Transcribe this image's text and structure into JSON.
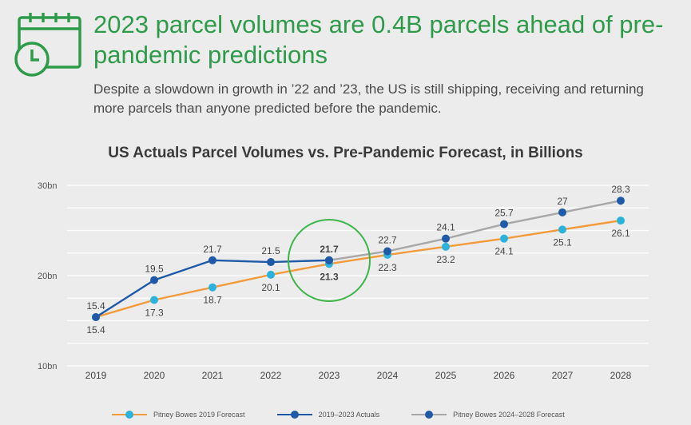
{
  "header": {
    "icon": "calendar-clock-icon",
    "headline": "2023 parcel volumes are 0.4B parcels ahead of pre-pandemic predictions",
    "subtitle": "Despite a slowdown in growth in ’22 and ’23, the US is still shipping, receiving and returning more parcels than anyone predicted before the pandemic."
  },
  "chart_data": {
    "type": "line",
    "title": "US Actuals Parcel Volumes vs. Pre-Pandemic Forecast, in Billions",
    "x": [
      "2019",
      "2020",
      "2021",
      "2022",
      "2023",
      "2024",
      "2025",
      "2026",
      "2027",
      "2028"
    ],
    "ylim": [
      10,
      30
    ],
    "y_ticks": [
      {
        "value": 10,
        "label": "10bn"
      },
      {
        "value": 20,
        "label": "20bn"
      },
      {
        "value": 30,
        "label": "30bn"
      }
    ],
    "grid": true,
    "legend_position": "bottom",
    "series": [
      {
        "name": "Pitney Bowes 2019 Forecast",
        "line_color": "#f39a3a",
        "marker_color": "#2bb3dd",
        "x": [
          "2019",
          "2020",
          "2021",
          "2022",
          "2023",
          "2024",
          "2025",
          "2026",
          "2027",
          "2028"
        ],
        "values": [
          15.4,
          17.3,
          18.7,
          20.1,
          21.3,
          22.3,
          23.2,
          24.1,
          25.1,
          26.1
        ],
        "labels": [
          "15.4",
          "17.3",
          "18.7",
          "20.1",
          "21.3",
          "22.3",
          "23.2",
          "24.1",
          "25.1",
          "26.1"
        ],
        "label_position": "below"
      },
      {
        "name": "2019–2023 Actuals",
        "line_color": "#1f5aa8",
        "marker_color": "#1f5aa8",
        "x": [
          "2019",
          "2020",
          "2021",
          "2022",
          "2023"
        ],
        "values": [
          15.4,
          19.5,
          21.7,
          21.5,
          21.7
        ],
        "labels": [
          "15.4",
          "19.5",
          "21.7",
          "21.5",
          "21.7"
        ],
        "label_position": "above"
      },
      {
        "name": "Pitney Bowes 2024–2028 Forecast",
        "line_color": "#a8a8a8",
        "marker_color": "#1f5aa8",
        "x": [
          "2023",
          "2024",
          "2025",
          "2026",
          "2027",
          "2028"
        ],
        "values": [
          21.7,
          22.7,
          24.1,
          25.7,
          27,
          28.3
        ],
        "labels": [
          "",
          "22.7",
          "24.1",
          "25.7",
          "27",
          "28.3"
        ],
        "label_position": "above"
      }
    ],
    "annotations": [
      {
        "type": "circle",
        "category": "2023",
        "color": "#3cb54a"
      }
    ]
  }
}
